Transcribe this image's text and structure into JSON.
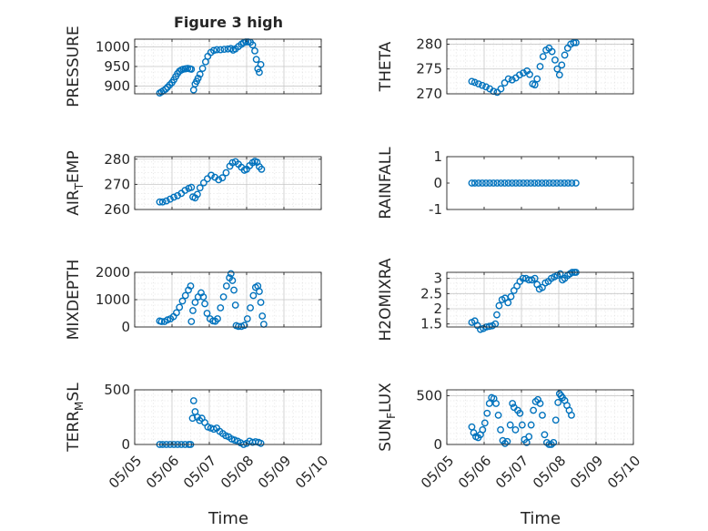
{
  "figure": {
    "title": "Figure 3 high",
    "xlabel": "Time"
  },
  "colors": {
    "marker": "#0072BD",
    "axis": "#262626",
    "grid": "#d4d4d4"
  },
  "chart_data": [
    {
      "type": "scatter",
      "ylabel": "PRESSURE",
      "ylim": [
        880,
        1020
      ],
      "yticks": [
        900,
        950,
        1000
      ],
      "ytick_labels": [
        "900",
        "950",
        "1000"
      ],
      "xticks": [],
      "grid": true,
      "points": [
        [
          5.67,
          882
        ],
        [
          5.72,
          885
        ],
        [
          5.77,
          888
        ],
        [
          5.83,
          892
        ],
        [
          5.88,
          897
        ],
        [
          5.94,
          903
        ],
        [
          6.0,
          909
        ],
        [
          6.05,
          916
        ],
        [
          6.1,
          924
        ],
        [
          6.15,
          932
        ],
        [
          6.2,
          938
        ],
        [
          6.25,
          941
        ],
        [
          6.3,
          943
        ],
        [
          6.36,
          944
        ],
        [
          6.42,
          945
        ],
        [
          6.48,
          944
        ],
        [
          6.52,
          943
        ],
        [
          6.58,
          890
        ],
        [
          6.62,
          905
        ],
        [
          6.66,
          912
        ],
        [
          6.7,
          920
        ],
        [
          6.75,
          930
        ],
        [
          6.82,
          945
        ],
        [
          6.9,
          962
        ],
        [
          6.96,
          976
        ],
        [
          7.04,
          986
        ],
        [
          7.12,
          991
        ],
        [
          7.2,
          993
        ],
        [
          7.3,
          993
        ],
        [
          7.4,
          994
        ],
        [
          7.5,
          995
        ],
        [
          7.58,
          996
        ],
        [
          7.64,
          992
        ],
        [
          7.7,
          995
        ],
        [
          7.78,
          1001
        ],
        [
          7.86,
          1007
        ],
        [
          7.92,
          1011
        ],
        [
          7.98,
          1013
        ],
        [
          8.04,
          1013
        ],
        [
          8.1,
          1012
        ],
        [
          8.16,
          1005
        ],
        [
          8.22,
          990
        ],
        [
          8.26,
          968
        ],
        [
          8.3,
          944
        ],
        [
          8.34,
          935
        ],
        [
          8.38,
          955
        ]
      ]
    },
    {
      "type": "scatter",
      "ylabel": "THETA",
      "ylim": [
        270,
        281
      ],
      "yticks": [
        270,
        275,
        280
      ],
      "ytick_labels": [
        "270",
        "275",
        "280"
      ],
      "xticks": [],
      "grid": true,
      "points": [
        [
          5.67,
          272.5
        ],
        [
          5.75,
          272.3
        ],
        [
          5.85,
          272
        ],
        [
          5.95,
          271.7
        ],
        [
          6.05,
          271.4
        ],
        [
          6.15,
          271
        ],
        [
          6.25,
          270.5
        ],
        [
          6.35,
          270.3
        ],
        [
          6.45,
          271
        ],
        [
          6.55,
          272.2
        ],
        [
          6.65,
          273
        ],
        [
          6.75,
          272.8
        ],
        [
          6.85,
          273.2
        ],
        [
          6.95,
          273.8
        ],
        [
          7.05,
          274.2
        ],
        [
          7.15,
          274.6
        ],
        [
          7.22,
          273.9
        ],
        [
          7.3,
          272
        ],
        [
          7.36,
          271.8
        ],
        [
          7.42,
          273
        ],
        [
          7.5,
          275.5
        ],
        [
          7.58,
          277.5
        ],
        [
          7.66,
          278.8
        ],
        [
          7.74,
          279.2
        ],
        [
          7.82,
          278.5
        ],
        [
          7.9,
          276.8
        ],
        [
          7.96,
          275
        ],
        [
          8.02,
          273.8
        ],
        [
          8.08,
          275.8
        ],
        [
          8.16,
          277.8
        ],
        [
          8.24,
          279.2
        ],
        [
          8.32,
          280
        ],
        [
          8.4,
          280.3
        ],
        [
          8.46,
          280.3
        ]
      ]
    },
    {
      "type": "scatter",
      "ylabel": "AIR_TEMP",
      "ylim": [
        260,
        281
      ],
      "yticks": [
        260,
        270,
        280
      ],
      "ytick_labels": [
        "260",
        "270",
        "280"
      ],
      "xticks": [],
      "grid": true,
      "points": [
        [
          5.67,
          263
        ],
        [
          5.75,
          263
        ],
        [
          5.85,
          263.4
        ],
        [
          5.95,
          264.1
        ],
        [
          6.05,
          264.9
        ],
        [
          6.15,
          265.5
        ],
        [
          6.25,
          266.4
        ],
        [
          6.35,
          267.6
        ],
        [
          6.45,
          268.4
        ],
        [
          6.52,
          268.8
        ],
        [
          6.56,
          265
        ],
        [
          6.62,
          264.6
        ],
        [
          6.68,
          266
        ],
        [
          6.75,
          268.6
        ],
        [
          6.85,
          270.6
        ],
        [
          6.95,
          272.2
        ],
        [
          7.05,
          273.6
        ],
        [
          7.15,
          272.8
        ],
        [
          7.25,
          271.8
        ],
        [
          7.35,
          272.6
        ],
        [
          7.45,
          274.6
        ],
        [
          7.55,
          277.2
        ],
        [
          7.62,
          278.6
        ],
        [
          7.7,
          279
        ],
        [
          7.78,
          278
        ],
        [
          7.86,
          276.8
        ],
        [
          7.94,
          275.6
        ],
        [
          8.0,
          276
        ],
        [
          8.08,
          277.4
        ],
        [
          8.16,
          278.6
        ],
        [
          8.22,
          279.2
        ],
        [
          8.28,
          278.8
        ],
        [
          8.34,
          277
        ],
        [
          8.4,
          276
        ]
      ]
    },
    {
      "type": "scatter",
      "ylabel": "RAINFALL",
      "ylim": [
        -1,
        1
      ],
      "yticks": [
        -1,
        0,
        1
      ],
      "ytick_labels": [
        "-1",
        "0",
        "1"
      ],
      "xticks": [],
      "grid": false,
      "points": [
        [
          5.67,
          0
        ],
        [
          5.75,
          0
        ],
        [
          5.85,
          0
        ],
        [
          5.95,
          0
        ],
        [
          6.05,
          0
        ],
        [
          6.15,
          0
        ],
        [
          6.25,
          0
        ],
        [
          6.35,
          0
        ],
        [
          6.45,
          0
        ],
        [
          6.55,
          0
        ],
        [
          6.65,
          0
        ],
        [
          6.75,
          0
        ],
        [
          6.85,
          0
        ],
        [
          6.95,
          0
        ],
        [
          7.05,
          0
        ],
        [
          7.15,
          0
        ],
        [
          7.25,
          0
        ],
        [
          7.35,
          0
        ],
        [
          7.45,
          0
        ],
        [
          7.55,
          0
        ],
        [
          7.65,
          0
        ],
        [
          7.75,
          0
        ],
        [
          7.85,
          0
        ],
        [
          7.95,
          0
        ],
        [
          8.05,
          0
        ],
        [
          8.15,
          0
        ],
        [
          8.25,
          0
        ],
        [
          8.35,
          0
        ],
        [
          8.46,
          0
        ]
      ]
    },
    {
      "type": "scatter",
      "ylabel": "MIXDEPTH",
      "ylim": [
        0,
        2000
      ],
      "yticks": [
        0,
        1000,
        2000
      ],
      "ytick_labels": [
        "0",
        "1000",
        "2000"
      ],
      "xticks": [],
      "grid": true,
      "points": [
        [
          5.67,
          220
        ],
        [
          5.72,
          200
        ],
        [
          5.8,
          200
        ],
        [
          5.88,
          260
        ],
        [
          5.96,
          300
        ],
        [
          6.04,
          380
        ],
        [
          6.12,
          520
        ],
        [
          6.2,
          720
        ],
        [
          6.28,
          950
        ],
        [
          6.36,
          1150
        ],
        [
          6.44,
          1350
        ],
        [
          6.5,
          1500
        ],
        [
          6.52,
          200
        ],
        [
          6.56,
          600
        ],
        [
          6.62,
          900
        ],
        [
          6.7,
          1100
        ],
        [
          6.78,
          1250
        ],
        [
          6.84,
          1100
        ],
        [
          6.88,
          850
        ],
        [
          6.94,
          500
        ],
        [
          7.02,
          300
        ],
        [
          7.1,
          220
        ],
        [
          7.16,
          210
        ],
        [
          7.22,
          300
        ],
        [
          7.3,
          700
        ],
        [
          7.38,
          1100
        ],
        [
          7.46,
          1500
        ],
        [
          7.54,
          1800
        ],
        [
          7.58,
          1950
        ],
        [
          7.62,
          1700
        ],
        [
          7.66,
          1350
        ],
        [
          7.7,
          800
        ],
        [
          7.72,
          50
        ],
        [
          7.78,
          20
        ],
        [
          7.86,
          20
        ],
        [
          7.94,
          60
        ],
        [
          8.02,
          300
        ],
        [
          8.1,
          700
        ],
        [
          8.18,
          1150
        ],
        [
          8.24,
          1450
        ],
        [
          8.3,
          1500
        ],
        [
          8.34,
          1300
        ],
        [
          8.38,
          900
        ],
        [
          8.42,
          400
        ],
        [
          8.46,
          100
        ]
      ]
    },
    {
      "type": "scatter",
      "ylabel": "H2OMIXRA",
      "ylim": [
        1.4,
        3.2
      ],
      "yticks": [
        1.5,
        2,
        2.5,
        3
      ],
      "ytick_labels": [
        "1.5",
        "2",
        "2.5",
        "3"
      ],
      "xticks": [],
      "grid": true,
      "points": [
        [
          5.67,
          1.55
        ],
        [
          5.75,
          1.6
        ],
        [
          5.82,
          1.45
        ],
        [
          5.9,
          1.32
        ],
        [
          5.98,
          1.35
        ],
        [
          6.06,
          1.4
        ],
        [
          6.14,
          1.42
        ],
        [
          6.22,
          1.44
        ],
        [
          6.3,
          1.5
        ],
        [
          6.34,
          1.8
        ],
        [
          6.4,
          2.1
        ],
        [
          6.48,
          2.3
        ],
        [
          6.56,
          2.35
        ],
        [
          6.64,
          2.2
        ],
        [
          6.72,
          2.4
        ],
        [
          6.8,
          2.6
        ],
        [
          6.88,
          2.75
        ],
        [
          6.96,
          2.9
        ],
        [
          7.04,
          3.0
        ],
        [
          7.12,
          3.0
        ],
        [
          7.2,
          2.95
        ],
        [
          7.28,
          2.95
        ],
        [
          7.36,
          3.0
        ],
        [
          7.42,
          2.8
        ],
        [
          7.48,
          2.65
        ],
        [
          7.56,
          2.7
        ],
        [
          7.64,
          2.85
        ],
        [
          7.72,
          2.9
        ],
        [
          7.8,
          3.0
        ],
        [
          7.88,
          3.05
        ],
        [
          7.96,
          3.1
        ],
        [
          8.04,
          3.15
        ],
        [
          8.1,
          2.95
        ],
        [
          8.16,
          3.0
        ],
        [
          8.24,
          3.1
        ],
        [
          8.3,
          3.15
        ],
        [
          8.36,
          3.2
        ],
        [
          8.42,
          3.2
        ],
        [
          8.46,
          3.2
        ]
      ]
    },
    {
      "type": "scatter",
      "ylabel": "TERR_MSL",
      "ylim": [
        0,
        500
      ],
      "yticks": [
        0,
        500
      ],
      "ytick_labels": [
        "0",
        "500"
      ],
      "xticks": [
        5,
        6,
        7,
        8,
        9,
        10
      ],
      "xtick_labels": [
        "05/05",
        "05/06",
        "05/07",
        "05/08",
        "05/09",
        "05/10"
      ],
      "grid": true,
      "points": [
        [
          5.67,
          0
        ],
        [
          5.75,
          0
        ],
        [
          5.85,
          0
        ],
        [
          5.95,
          0
        ],
        [
          6.05,
          0
        ],
        [
          6.15,
          0
        ],
        [
          6.25,
          0
        ],
        [
          6.35,
          0
        ],
        [
          6.45,
          0
        ],
        [
          6.5,
          0
        ],
        [
          6.55,
          240
        ],
        [
          6.58,
          400
        ],
        [
          6.62,
          300
        ],
        [
          6.68,
          250
        ],
        [
          6.74,
          220
        ],
        [
          6.8,
          240
        ],
        [
          6.88,
          200
        ],
        [
          6.96,
          160
        ],
        [
          7.04,
          150
        ],
        [
          7.12,
          140
        ],
        [
          7.2,
          150
        ],
        [
          7.28,
          120
        ],
        [
          7.36,
          100
        ],
        [
          7.44,
          80
        ],
        [
          7.52,
          70
        ],
        [
          7.6,
          50
        ],
        [
          7.68,
          40
        ],
        [
          7.76,
          30
        ],
        [
          7.84,
          15
        ],
        [
          7.92,
          0
        ],
        [
          8.0,
          10
        ],
        [
          8.08,
          30
        ],
        [
          8.16,
          20
        ],
        [
          8.24,
          25
        ],
        [
          8.32,
          20
        ],
        [
          8.38,
          10
        ]
      ]
    },
    {
      "type": "scatter",
      "ylabel": "SUN_FLUX",
      "ylim": [
        0,
        560
      ],
      "yticks": [
        0,
        500
      ],
      "ytick_labels": [
        "0",
        "500"
      ],
      "xticks": [
        5,
        6,
        7,
        8,
        9,
        10
      ],
      "xtick_labels": [
        "05/05",
        "05/06",
        "05/07",
        "05/08",
        "05/09",
        "05/10"
      ],
      "grid": true,
      "points": [
        [
          5.67,
          180
        ],
        [
          5.72,
          120
        ],
        [
          5.78,
          80
        ],
        [
          5.84,
          70
        ],
        [
          5.9,
          100
        ],
        [
          5.96,
          150
        ],
        [
          6.02,
          220
        ],
        [
          6.08,
          320
        ],
        [
          6.14,
          420
        ],
        [
          6.2,
          480
        ],
        [
          6.26,
          470
        ],
        [
          6.32,
          420
        ],
        [
          6.38,
          300
        ],
        [
          6.44,
          150
        ],
        [
          6.5,
          40
        ],
        [
          6.56,
          10
        ],
        [
          6.62,
          30
        ],
        [
          6.7,
          200
        ],
        [
          6.76,
          420
        ],
        [
          6.8,
          380
        ],
        [
          6.84,
          150
        ],
        [
          6.9,
          350
        ],
        [
          6.96,
          320
        ],
        [
          7.02,
          200
        ],
        [
          7.08,
          50
        ],
        [
          7.14,
          20
        ],
        [
          7.2,
          80
        ],
        [
          7.26,
          200
        ],
        [
          7.32,
          350
        ],
        [
          7.38,
          440
        ],
        [
          7.44,
          460
        ],
        [
          7.5,
          420
        ],
        [
          7.56,
          300
        ],
        [
          7.62,
          100
        ],
        [
          7.68,
          20
        ],
        [
          7.74,
          0
        ],
        [
          7.8,
          0
        ],
        [
          7.86,
          20
        ],
        [
          7.92,
          250
        ],
        [
          7.98,
          430
        ],
        [
          8.02,
          520
        ],
        [
          8.06,
          500
        ],
        [
          8.1,
          480
        ],
        [
          8.16,
          450
        ],
        [
          8.22,
          400
        ],
        [
          8.28,
          350
        ],
        [
          8.34,
          300
        ]
      ]
    }
  ]
}
